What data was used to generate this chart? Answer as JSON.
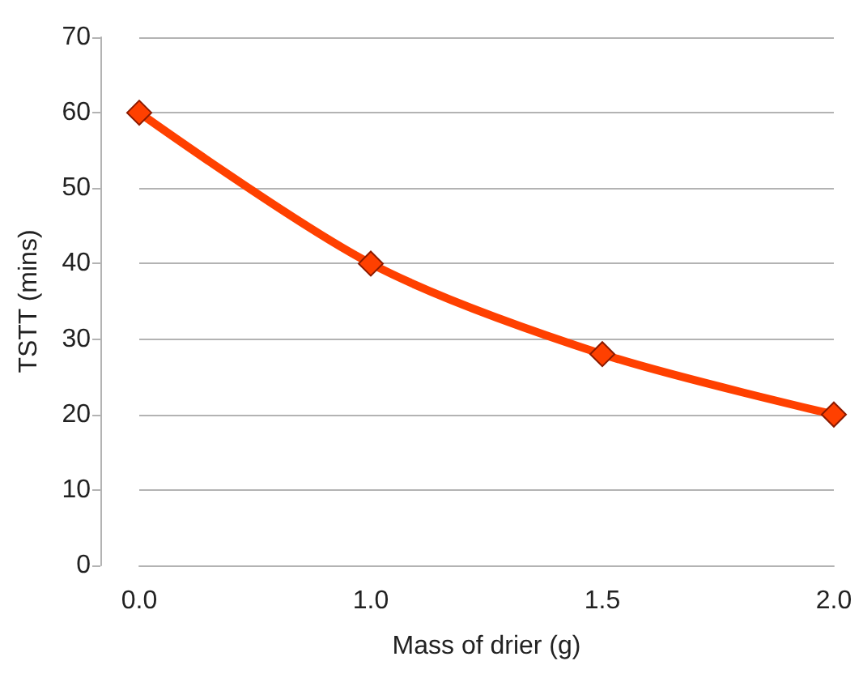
{
  "chart_data": {
    "type": "line",
    "xlabel": "Mass of drier (g)",
    "ylabel": "TSTT (mins)",
    "categories": [
      "0.0",
      "1.0",
      "1.5",
      "2.0"
    ],
    "series": [
      {
        "color": "#ff4000",
        "values": [
          60,
          40,
          28,
          20
        ]
      }
    ],
    "ylim": [
      0,
      70
    ],
    "yticks": [
      0,
      10,
      20,
      30,
      40,
      50,
      60,
      70
    ],
    "grid": "y",
    "marker": "diamond",
    "line_style": "solid"
  }
}
